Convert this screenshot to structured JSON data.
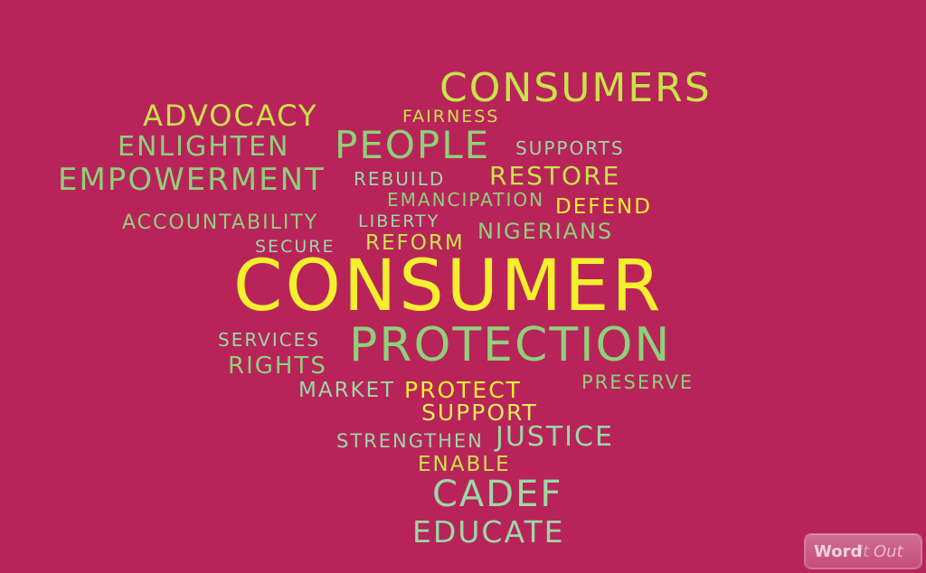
{
  "wordcloud": {
    "words": [
      {
        "text": "CONSUMER",
        "color": "#f4ef2f"
      },
      {
        "text": "PROTECTION",
        "color": "#8fd07a"
      },
      {
        "text": "CONSUMERS",
        "color": "#c9e34a"
      },
      {
        "text": "PEOPLE",
        "color": "#8fd07a"
      },
      {
        "text": "ADVOCACY",
        "color": "#c9e34a"
      },
      {
        "text": "ENLIGHTEN",
        "color": "#8fd07a"
      },
      {
        "text": "EMPOWERMENT",
        "color": "#8fd07a"
      },
      {
        "text": "FAIRNESS",
        "color": "#c9e34a"
      },
      {
        "text": "SUPPORTS",
        "color": "#9bd8a5"
      },
      {
        "text": "RESTORE",
        "color": "#c9e34a"
      },
      {
        "text": "REBUILD",
        "color": "#9bd8a5"
      },
      {
        "text": "EMANCIPATION",
        "color": "#8fd07a"
      },
      {
        "text": "DEFEND",
        "color": "#f4ef2f"
      },
      {
        "text": "ACCOUNTABILITY",
        "color": "#8fd07a"
      },
      {
        "text": "LIBERTY",
        "color": "#9bd8a5"
      },
      {
        "text": "NIGERIANS",
        "color": "#8fd07a"
      },
      {
        "text": "SECURE",
        "color": "#9bd8a5"
      },
      {
        "text": "REFORM",
        "color": "#c9e34a"
      },
      {
        "text": "SERVICES",
        "color": "#9bd8a5"
      },
      {
        "text": "RIGHTS",
        "color": "#8fd07a"
      },
      {
        "text": "MARKET",
        "color": "#9bd8a5"
      },
      {
        "text": "PROTECT",
        "color": "#f4ef2f"
      },
      {
        "text": "PRESERVE",
        "color": "#8fd07a"
      },
      {
        "text": "SUPPORT",
        "color": "#e9ec5a"
      },
      {
        "text": "STRENGTHEN",
        "color": "#9bd8a5"
      },
      {
        "text": "JUSTICE",
        "color": "#9bd8a5"
      },
      {
        "text": "ENABLE",
        "color": "#c9e34a"
      },
      {
        "text": "CADEF",
        "color": "#9bd8a5"
      },
      {
        "text": "EDUCATE",
        "color": "#9bd8a5"
      }
    ]
  },
  "watermark": {
    "text": "WordItOut"
  },
  "colors": {
    "background": "#b8245a",
    "lime": "#c9e34a",
    "green": "#8fd07a",
    "mint": "#9bd8a5",
    "yellow": "#f4ef2f",
    "soft_yellow": "#e9ec5a"
  }
}
